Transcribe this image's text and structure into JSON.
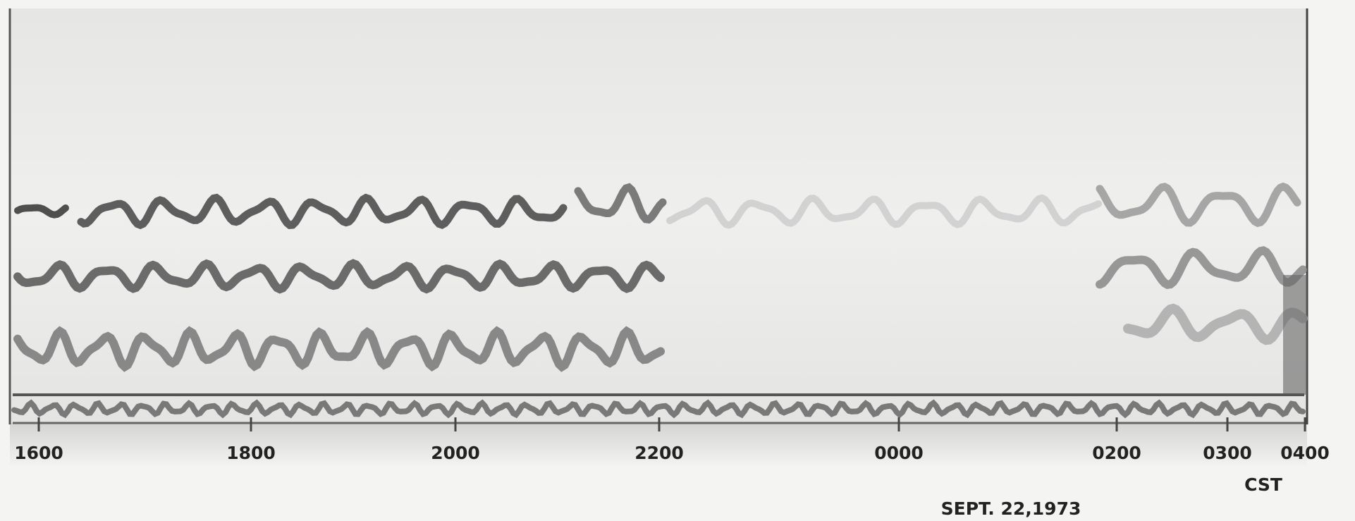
{
  "time_labels": [
    "1600",
    "1800",
    "2000",
    "2200",
    "0000",
    "0200",
    "0300",
    "0400"
  ],
  "time_zone": "CST",
  "date": "SEPT. 22,1973"
}
